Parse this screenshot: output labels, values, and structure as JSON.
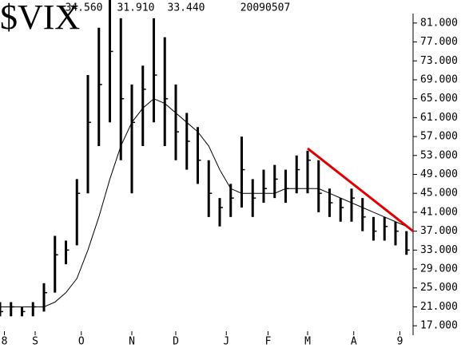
{
  "chart_data": {
    "type": "ohlc",
    "title": "$VIX",
    "header_values": [
      "34.560",
      "31.910",
      "33.440",
      "20090507"
    ],
    "x": [
      0,
      5,
      10,
      15,
      20,
      25,
      30,
      35,
      40,
      45,
      50,
      55,
      60,
      65,
      70,
      75,
      80,
      85,
      90,
      95,
      100,
      105,
      110,
      115,
      120,
      125,
      130,
      135,
      140,
      145,
      150,
      155,
      160,
      165,
      170,
      175,
      180,
      185
    ],
    "series": [
      {
        "color": "#000000",
        "high": [
          22,
          22,
          21,
          22,
          26,
          36,
          35,
          48,
          70,
          80,
          86,
          82,
          68,
          72,
          82,
          78,
          68,
          62,
          59,
          52,
          44,
          47,
          57,
          48,
          50,
          51,
          50,
          53,
          54,
          52,
          46,
          44,
          46,
          44,
          40,
          40,
          39,
          37
        ],
        "low": [
          19,
          19,
          19,
          19,
          20,
          24,
          30,
          34,
          45,
          55,
          60,
          52,
          45,
          55,
          60,
          55,
          52,
          50,
          47,
          40,
          38,
          40,
          42,
          40,
          43,
          44,
          43,
          45,
          45,
          41,
          40,
          39,
          39,
          37,
          35,
          35,
          34,
          32
        ],
        "close": [
          20,
          21,
          20,
          21,
          24,
          32,
          33,
          45,
          60,
          68,
          75,
          65,
          60,
          67,
          70,
          65,
          58,
          56,
          52,
          45,
          42,
          44,
          50,
          44,
          46,
          48,
          46,
          50,
          52,
          45,
          43,
          42,
          44,
          40,
          37,
          38,
          37,
          33
        ]
      },
      {
        "color": "#000000",
        "values": [
          21,
          21,
          21,
          21,
          21,
          22,
          24,
          27,
          33,
          40,
          48,
          55,
          60,
          63,
          65,
          64,
          62,
          60,
          58,
          55,
          50,
          46,
          45,
          45,
          45,
          45,
          46,
          46,
          46,
          46,
          45,
          44,
          43,
          42,
          41,
          40,
          39,
          38
        ]
      }
    ],
    "trendline": {
      "color": "#e00000",
      "x": [
        140,
        188
      ],
      "y": [
        54.5,
        37
      ]
    },
    "xlim": [
      0,
      188
    ],
    "xticks": [
      {
        "value": 2,
        "label": "8"
      },
      {
        "value": 16,
        "label": "S"
      },
      {
        "value": 37,
        "label": "O"
      },
      {
        "value": 60,
        "label": "N"
      },
      {
        "value": 80,
        "label": "D"
      },
      {
        "value": 103,
        "label": "J"
      },
      {
        "value": 122,
        "label": "F"
      },
      {
        "value": 140,
        "label": "M"
      },
      {
        "value": 161,
        "label": "A"
      },
      {
        "value": 182,
        "label": "9"
      }
    ],
    "ylim": [
      15,
      83
    ],
    "yticks": [
      {
        "value": 17,
        "label": "17.000"
      },
      {
        "value": 21,
        "label": "21.000"
      },
      {
        "value": 25,
        "label": "25.000"
      },
      {
        "value": 29,
        "label": "29.000"
      },
      {
        "value": 33,
        "label": "33.000"
      },
      {
        "value": 37,
        "label": "37.000"
      },
      {
        "value": 41,
        "label": "41.000"
      },
      {
        "value": 45,
        "label": "45.000"
      },
      {
        "value": 49,
        "label": "49.000"
      },
      {
        "value": 53,
        "label": "53.000"
      },
      {
        "value": 57,
        "label": "57.000"
      },
      {
        "value": 61,
        "label": "61.000"
      },
      {
        "value": 65,
        "label": "65.000"
      },
      {
        "value": 69,
        "label": "69.000"
      },
      {
        "value": 73,
        "label": "73.000"
      },
      {
        "value": 77,
        "label": "77.000"
      },
      {
        "value": 81,
        "label": "81.000"
      }
    ]
  }
}
